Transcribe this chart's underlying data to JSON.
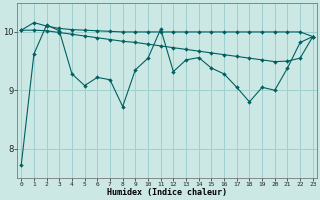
{
  "xlabel": "Humidex (Indice chaleur)",
  "bg_color": "#cce8e5",
  "grid_color": "#99cccc",
  "line_color": "#006060",
  "xlim_min": -0.3,
  "xlim_max": 23.3,
  "ylim_min": 7.5,
  "ylim_max": 10.5,
  "yticks": [
    8,
    9,
    10
  ],
  "ytick_labels": [
    "8",
    "9",
    "10"
  ],
  "xticks": [
    0,
    1,
    2,
    3,
    4,
    5,
    6,
    7,
    8,
    9,
    10,
    11,
    12,
    13,
    14,
    15,
    16,
    17,
    18,
    19,
    20,
    21,
    22,
    23
  ],
  "line1_x": [
    0,
    1,
    2,
    3,
    4,
    5,
    6,
    7,
    8,
    9,
    10,
    11,
    12,
    13,
    14,
    15,
    16,
    17,
    18,
    19,
    20,
    21,
    22,
    23
  ],
  "line1_y": [
    7.72,
    9.62,
    10.12,
    10.02,
    9.28,
    9.08,
    9.22,
    9.18,
    8.72,
    9.35,
    9.55,
    10.05,
    9.32,
    9.52,
    9.56,
    9.38,
    9.28,
    9.05,
    8.8,
    9.05,
    9.0,
    9.38,
    9.82,
    9.92
  ],
  "line2_x": [
    0,
    1,
    2,
    3,
    4,
    5,
    6,
    7,
    8,
    9,
    10,
    11,
    12,
    13,
    14,
    15,
    16,
    17,
    18,
    19,
    20,
    21,
    22,
    23
  ],
  "line2_y": [
    10.03,
    10.03,
    10.02,
    9.99,
    9.96,
    9.93,
    9.9,
    9.87,
    9.84,
    9.82,
    9.79,
    9.76,
    9.73,
    9.7,
    9.67,
    9.64,
    9.61,
    9.58,
    9.55,
    9.52,
    9.49,
    9.5,
    9.55,
    9.92
  ],
  "line3_x": [
    0,
    1,
    2,
    3,
    4,
    5,
    6,
    7,
    8,
    9,
    10,
    11,
    12,
    13,
    14,
    15,
    16,
    17,
    18,
    19,
    20,
    21,
    22,
    23
  ],
  "line3_y": [
    10.03,
    10.16,
    10.1,
    10.06,
    10.04,
    10.03,
    10.02,
    10.01,
    10.0,
    10.0,
    10.0,
    10.0,
    10.0,
    10.0,
    10.0,
    10.0,
    10.0,
    10.0,
    10.0,
    10.0,
    10.0,
    10.0,
    10.0,
    9.92
  ],
  "xlabel_fontsize": 6,
  "xtick_fontsize": 4.5,
  "ytick_fontsize": 6,
  "linewidth": 0.8,
  "markersize": 2.0
}
